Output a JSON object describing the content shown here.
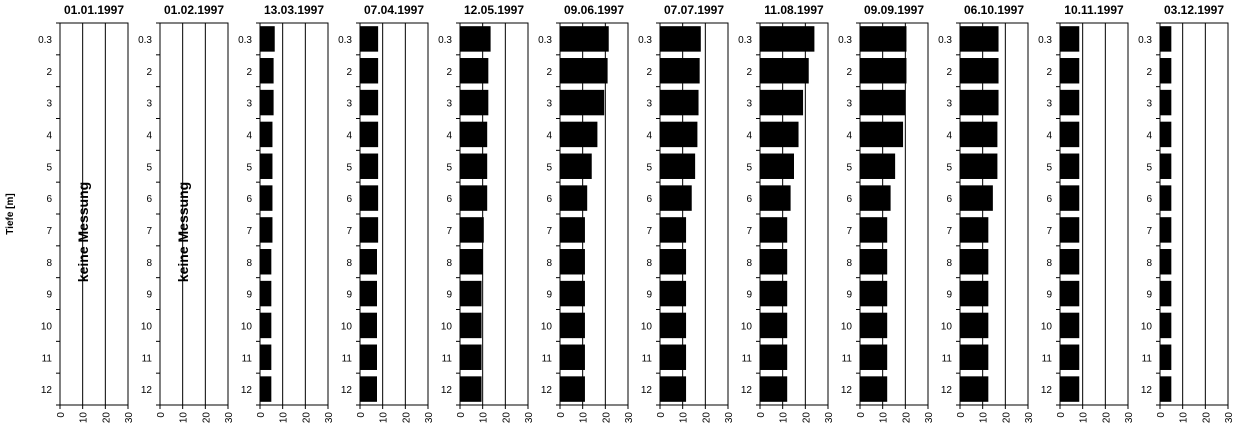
{
  "chart_data": {
    "type": "bar",
    "orientation": "horizontal",
    "ylabel": "Tiefe [m]",
    "depths": [
      "0.3",
      "2",
      "3",
      "4",
      "5",
      "6",
      "7",
      "8",
      "9",
      "10",
      "11",
      "12"
    ],
    "xlim": [
      0,
      30
    ],
    "xticks": [
      "0",
      "10",
      "20",
      "30"
    ],
    "bar_color": "#000000",
    "grid": "vertical",
    "panels": [
      {
        "title": "01.01.1997",
        "note": "keine Messung",
        "values": null
      },
      {
        "title": "01.02.1997",
        "note": "keine Messung",
        "values": null
      },
      {
        "title": "13.03.1997",
        "values": [
          6.5,
          6,
          6,
          5.5,
          5.5,
          5.5,
          5.5,
          5,
          5,
          5,
          5,
          5
        ]
      },
      {
        "title": "07.04.1997",
        "values": [
          8,
          8,
          8,
          8,
          8,
          8,
          8,
          7.5,
          7.5,
          7.5,
          7.5,
          7.5
        ]
      },
      {
        "title": "12.05.1997",
        "values": [
          13.5,
          12.5,
          12.5,
          12,
          12,
          12,
          10.5,
          10,
          9.5,
          9.5,
          9.5,
          9.5
        ]
      },
      {
        "title": "09.06.1997",
        "values": [
          21.5,
          21,
          19.5,
          16.5,
          14,
          12,
          11,
          11,
          11,
          11,
          11,
          11
        ]
      },
      {
        "title": "07.07.1997",
        "values": [
          18,
          17.5,
          17,
          16.5,
          15.5,
          14,
          11.5,
          11.5,
          11.5,
          11.5,
          11.5,
          11.5
        ]
      },
      {
        "title": "11.08.1997",
        "values": [
          24,
          21.5,
          19,
          17,
          15,
          13.5,
          12,
          12,
          12,
          12,
          12,
          12
        ]
      },
      {
        "title": "09.09.1997",
        "values": [
          20.5,
          20.5,
          20,
          19,
          15.5,
          13.5,
          12,
          12,
          12,
          12,
          12,
          12
        ]
      },
      {
        "title": "06.10.1997",
        "values": [
          17,
          17,
          17,
          16.5,
          16.5,
          14.5,
          12.5,
          12.5,
          12.5,
          12.5,
          12.5,
          12.5
        ]
      },
      {
        "title": "10.11.1997",
        "values": [
          8.5,
          8.5,
          8.5,
          8.5,
          8.5,
          8.5,
          8.5,
          8.5,
          8.5,
          8.5,
          8.5,
          8.5
        ]
      },
      {
        "title": "03.12.1997",
        "values": [
          5,
          5,
          5,
          5,
          5,
          5,
          5,
          5,
          5,
          5,
          5,
          5
        ]
      }
    ]
  }
}
